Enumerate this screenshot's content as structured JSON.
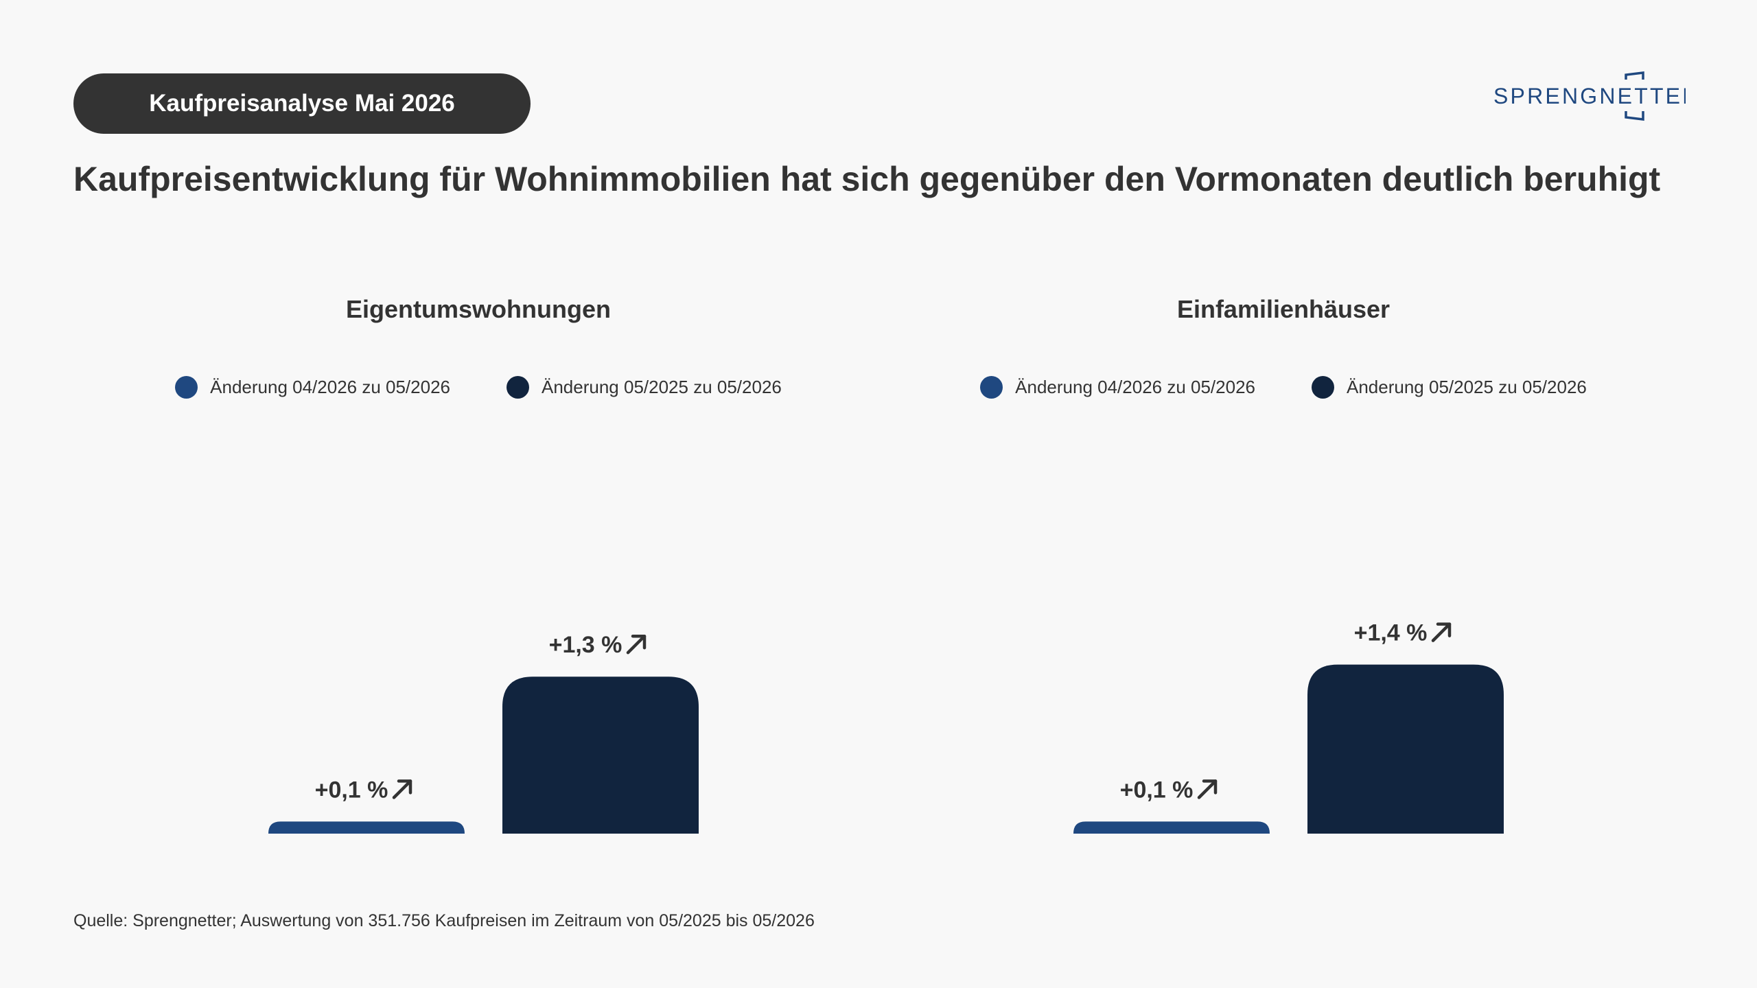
{
  "header": {
    "badge": "Kaufpreisanalyse Mai 2026",
    "logo_text": "SPRENGNETTER"
  },
  "headline": "Kaufpreisentwicklung für Wohnimmobilien hat sich gegenüber den Vormonaten deutlich beruhigt",
  "colors": {
    "series_monthly": "#1f4880",
    "series_yearly": "#11243e",
    "text": "#333333",
    "background": "#f8f8f8",
    "logo": "#1f4880"
  },
  "chart_data": [
    {
      "type": "bar",
      "title": "Eigentumswohnungen",
      "categories": [
        "Änderung 04/2026 zu 05/2026",
        "Änderung 05/2025 zu 05/2026"
      ],
      "values": [
        0.1,
        1.3
      ],
      "value_labels": [
        "+0,1 %",
        "+1,3 %"
      ],
      "trend_icons": [
        "arrow-up-right-icon",
        "arrow-up-right-icon"
      ],
      "legend": [
        {
          "label": "Änderung 04/2026 zu 05/2026",
          "color": "#1f4880"
        },
        {
          "label": "Änderung 05/2025 zu 05/2026",
          "color": "#11243e"
        }
      ],
      "legend_position": "top-center",
      "grid": false
    },
    {
      "type": "bar",
      "title": "Einfamilienhäuser",
      "categories": [
        "Änderung 04/2026 zu 05/2026",
        "Änderung 05/2025 zu 05/2026"
      ],
      "values": [
        0.1,
        1.4
      ],
      "value_labels": [
        "+0,1 %",
        "+1,4 %"
      ],
      "trend_icons": [
        "arrow-up-right-icon",
        "arrow-up-right-icon"
      ],
      "legend": [
        {
          "label": "Änderung 04/2026 zu 05/2026",
          "color": "#1f4880"
        },
        {
          "label": "Änderung 05/2025 zu 05/2026",
          "color": "#11243e"
        }
      ],
      "legend_position": "top-center",
      "grid": false
    }
  ],
  "source": "Quelle: Sprengnetter; Auswertung von 351.756 Kaufpreisen im Zeitraum von 05/2025 bis 05/2026"
}
